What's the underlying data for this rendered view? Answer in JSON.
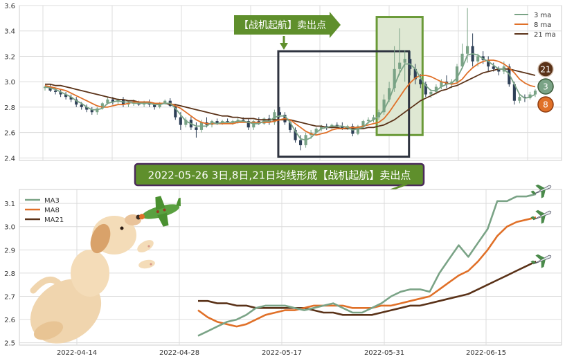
{
  "colors": {
    "ma3": "#7aa386",
    "ma8": "#e07028",
    "ma21": "#5a3218",
    "candle_up": "#7aa386",
    "candle_down": "#2e4057",
    "grid": "#dcdcdc",
    "banner_bg": "#5f8f2c",
    "banner_border": "#4a2a5a",
    "highlight_box": "#2f3440",
    "green_box_fill": "#dfe8d3",
    "green_box_stroke": "#6a9a38"
  },
  "top_chart": {
    "legend": [
      {
        "label": "3 ma",
        "series": "ma3"
      },
      {
        "label": "8 ma",
        "series": "ma8"
      },
      {
        "label": "21 ma",
        "series": "ma21"
      }
    ],
    "badges": [
      {
        "text": "21",
        "series": "ma21"
      },
      {
        "text": "3",
        "series": "ma3"
      },
      {
        "text": "8",
        "series": "ma8"
      }
    ],
    "arrow_label": "【战机起航】卖出点"
  },
  "middle_banner": {
    "text": "2022-05-26 3日,8日,21日均线形成【战机起航】卖出点"
  },
  "bottom_chart": {
    "legend": [
      {
        "label": "MA3",
        "series": "ma3"
      },
      {
        "label": "MA8",
        "series": "ma8"
      },
      {
        "label": "MA21",
        "series": "ma21"
      }
    ]
  },
  "icons": [
    "airplane-icon",
    "puppy-illustration",
    "toy-airplane-icon"
  ],
  "chart_data": [
    {
      "type": "candlestick",
      "title": "",
      "xlabel": "",
      "ylabel": "",
      "ylim": [
        2.38,
        3.6
      ],
      "y_ticks": [
        "2.4",
        "2.6",
        "2.8",
        "3.0",
        "3.2",
        "3.4",
        "3.6"
      ],
      "grid": true,
      "legend_position": "top-right",
      "ohlc": [
        [
          2.95,
          2.97,
          2.93,
          2.96
        ],
        [
          2.96,
          2.98,
          2.92,
          2.93
        ],
        [
          2.93,
          2.95,
          2.9,
          2.92
        ],
        [
          2.92,
          2.94,
          2.88,
          2.9
        ],
        [
          2.9,
          2.92,
          2.86,
          2.88
        ],
        [
          2.88,
          2.9,
          2.84,
          2.86
        ],
        [
          2.86,
          2.88,
          2.8,
          2.82
        ],
        [
          2.82,
          2.84,
          2.78,
          2.8
        ],
        [
          2.8,
          2.82,
          2.76,
          2.78
        ],
        [
          2.78,
          2.8,
          2.74,
          2.76
        ],
        [
          2.76,
          2.8,
          2.74,
          2.79
        ],
        [
          2.79,
          2.84,
          2.78,
          2.83
        ],
        [
          2.83,
          2.88,
          2.82,
          2.86
        ],
        [
          2.86,
          2.88,
          2.82,
          2.84
        ],
        [
          2.84,
          2.87,
          2.82,
          2.86
        ],
        [
          2.86,
          2.88,
          2.8,
          2.82
        ],
        [
          2.82,
          2.84,
          2.8,
          2.83
        ],
        [
          2.83,
          2.86,
          2.81,
          2.84
        ],
        [
          2.84,
          2.85,
          2.81,
          2.82
        ],
        [
          2.82,
          2.85,
          2.8,
          2.84
        ],
        [
          2.84,
          2.86,
          2.8,
          2.82
        ],
        [
          2.82,
          2.83,
          2.78,
          2.8
        ],
        [
          2.8,
          2.84,
          2.79,
          2.83
        ],
        [
          2.83,
          2.86,
          2.82,
          2.85
        ],
        [
          2.85,
          2.87,
          2.8,
          2.81
        ],
        [
          2.81,
          2.82,
          2.7,
          2.72
        ],
        [
          2.72,
          2.76,
          2.62,
          2.66
        ],
        [
          2.66,
          2.72,
          2.64,
          2.7
        ],
        [
          2.7,
          2.73,
          2.62,
          2.64
        ],
        [
          2.64,
          2.68,
          2.56,
          2.62
        ],
        [
          2.62,
          2.7,
          2.6,
          2.68
        ],
        [
          2.68,
          2.72,
          2.64,
          2.66
        ],
        [
          2.66,
          2.7,
          2.64,
          2.69
        ],
        [
          2.69,
          2.71,
          2.66,
          2.67
        ],
        [
          2.67,
          2.7,
          2.66,
          2.69
        ],
        [
          2.69,
          2.71,
          2.67,
          2.68
        ],
        [
          2.68,
          2.7,
          2.66,
          2.69
        ],
        [
          2.69,
          2.72,
          2.67,
          2.7
        ],
        [
          2.7,
          2.72,
          2.68,
          2.69
        ],
        [
          2.69,
          2.71,
          2.62,
          2.64
        ],
        [
          2.64,
          2.7,
          2.62,
          2.69
        ],
        [
          2.69,
          2.72,
          2.66,
          2.67
        ],
        [
          2.67,
          2.72,
          2.66,
          2.71
        ],
        [
          2.71,
          2.74,
          2.66,
          2.68
        ],
        [
          2.68,
          2.78,
          2.66,
          2.76
        ],
        [
          2.76,
          2.8,
          2.72,
          2.74
        ],
        [
          2.74,
          2.76,
          2.66,
          2.68
        ],
        [
          2.68,
          2.7,
          2.6,
          2.62
        ],
        [
          2.62,
          2.64,
          2.52,
          2.54
        ],
        [
          2.54,
          2.58,
          2.46,
          2.5
        ],
        [
          2.5,
          2.6,
          2.48,
          2.58
        ],
        [
          2.58,
          2.62,
          2.55,
          2.6
        ],
        [
          2.6,
          2.64,
          2.58,
          2.63
        ],
        [
          2.63,
          2.66,
          2.61,
          2.65
        ],
        [
          2.65,
          2.67,
          2.62,
          2.64
        ],
        [
          2.64,
          2.67,
          2.63,
          2.66
        ],
        [
          2.66,
          2.68,
          2.64,
          2.65
        ],
        [
          2.65,
          2.68,
          2.62,
          2.63
        ],
        [
          2.63,
          2.66,
          2.62,
          2.65
        ],
        [
          2.65,
          2.67,
          2.57,
          2.59
        ],
        [
          2.59,
          2.66,
          2.58,
          2.65
        ],
        [
          2.65,
          2.7,
          2.64,
          2.69
        ],
        [
          2.69,
          2.72,
          2.67,
          2.7
        ],
        [
          2.7,
          2.74,
          2.68,
          2.72
        ],
        [
          2.72,
          2.78,
          2.7,
          2.76
        ],
        [
          2.76,
          2.9,
          2.74,
          2.86
        ],
        [
          2.86,
          3.0,
          2.84,
          2.95
        ],
        [
          2.95,
          3.28,
          2.92,
          3.1
        ],
        [
          3.1,
          3.42,
          3.05,
          3.15
        ],
        [
          3.15,
          3.25,
          3.0,
          3.18
        ],
        [
          3.18,
          3.24,
          3.05,
          3.1
        ],
        [
          3.1,
          3.14,
          2.98,
          3.02
        ],
        [
          3.02,
          3.06,
          2.95,
          2.98
        ],
        [
          2.98,
          3.0,
          2.88,
          2.9
        ],
        [
          2.9,
          2.94,
          2.87,
          2.92
        ],
        [
          2.92,
          2.98,
          2.9,
          2.96
        ],
        [
          2.96,
          3.02,
          2.94,
          3.0
        ],
        [
          3.0,
          3.05,
          2.95,
          2.98
        ],
        [
          2.98,
          3.02,
          2.95,
          3.0
        ],
        [
          3.0,
          3.14,
          2.98,
          3.12
        ],
        [
          3.12,
          3.3,
          3.1,
          3.22
        ],
        [
          3.22,
          3.58,
          3.15,
          3.28
        ],
        [
          3.28,
          3.38,
          3.12,
          3.16
        ],
        [
          3.16,
          3.22,
          3.12,
          3.2
        ],
        [
          3.2,
          3.24,
          3.14,
          3.17
        ],
        [
          3.17,
          3.2,
          3.08,
          3.12
        ],
        [
          3.12,
          3.15,
          3.08,
          3.1
        ],
        [
          3.1,
          3.12,
          3.05,
          3.08
        ],
        [
          3.08,
          3.16,
          3.06,
          3.12
        ],
        [
          3.12,
          3.14,
          2.96,
          2.98
        ],
        [
          2.98,
          3.0,
          2.82,
          2.85
        ],
        [
          2.85,
          2.9,
          2.83,
          2.88
        ],
        [
          2.88,
          2.9,
          2.84,
          2.87
        ],
        [
          2.87,
          2.92,
          2.86,
          2.9
        ],
        [
          2.9,
          2.94,
          2.88,
          2.93
        ]
      ],
      "series": [
        {
          "name": "3 ma",
          "key": "ma3",
          "values": [
            2.96,
            2.95,
            2.94,
            2.92,
            2.9,
            2.88,
            2.85,
            2.83,
            2.8,
            2.78,
            2.78,
            2.79,
            2.83,
            2.84,
            2.85,
            2.84,
            2.84,
            2.83,
            2.83,
            2.83,
            2.83,
            2.82,
            2.82,
            2.83,
            2.83,
            2.79,
            2.74,
            2.69,
            2.67,
            2.65,
            2.65,
            2.65,
            2.68,
            2.67,
            2.68,
            2.68,
            2.68,
            2.69,
            2.69,
            2.68,
            2.67,
            2.67,
            2.69,
            2.69,
            2.72,
            2.73,
            2.73,
            2.68,
            2.61,
            2.55,
            2.54,
            2.56,
            2.6,
            2.63,
            2.64,
            2.65,
            2.65,
            2.65,
            2.64,
            2.62,
            2.63,
            2.64,
            2.68,
            2.7,
            2.73,
            2.78,
            2.86,
            2.97,
            3.07,
            3.14,
            3.14,
            3.1,
            3.03,
            2.97,
            2.93,
            2.93,
            2.96,
            2.98,
            2.99,
            3.03,
            3.11,
            3.21,
            3.22,
            3.21,
            3.18,
            3.16,
            3.13,
            3.1,
            3.1,
            3.06,
            2.98,
            2.9,
            2.87,
            2.88,
            2.9
          ]
        },
        {
          "name": "8 ma",
          "key": "ma8",
          "values": [
            2.97,
            2.96,
            2.95,
            2.94,
            2.93,
            2.91,
            2.89,
            2.87,
            2.85,
            2.83,
            2.81,
            2.8,
            2.8,
            2.81,
            2.82,
            2.82,
            2.83,
            2.84,
            2.84,
            2.84,
            2.84,
            2.83,
            2.83,
            2.83,
            2.83,
            2.81,
            2.79,
            2.76,
            2.73,
            2.7,
            2.68,
            2.67,
            2.67,
            2.67,
            2.67,
            2.67,
            2.67,
            2.68,
            2.68,
            2.68,
            2.68,
            2.68,
            2.68,
            2.68,
            2.69,
            2.7,
            2.71,
            2.7,
            2.67,
            2.64,
            2.61,
            2.59,
            2.58,
            2.59,
            2.6,
            2.62,
            2.63,
            2.63,
            2.64,
            2.64,
            2.64,
            2.65,
            2.66,
            2.67,
            2.68,
            2.71,
            2.76,
            2.82,
            2.88,
            2.94,
            2.99,
            3.03,
            3.05,
            3.05,
            3.04,
            3.02,
            3.0,
            2.99,
            2.98,
            2.99,
            3.02,
            3.07,
            3.11,
            3.14,
            3.16,
            3.17,
            3.17,
            3.16,
            3.14,
            3.11,
            3.07,
            3.02,
            2.99,
            2.97,
            2.96
          ]
        },
        {
          "name": "21 ma",
          "key": "ma21",
          "values": [
            2.98,
            2.98,
            2.97,
            2.97,
            2.96,
            2.95,
            2.94,
            2.93,
            2.92,
            2.91,
            2.9,
            2.89,
            2.88,
            2.87,
            2.86,
            2.86,
            2.85,
            2.85,
            2.84,
            2.84,
            2.84,
            2.83,
            2.83,
            2.83,
            2.82,
            2.82,
            2.81,
            2.8,
            2.79,
            2.78,
            2.77,
            2.76,
            2.75,
            2.74,
            2.73,
            2.73,
            2.72,
            2.72,
            2.71,
            2.71,
            2.71,
            2.7,
            2.7,
            2.7,
            2.7,
            2.7,
            2.7,
            2.7,
            2.69,
            2.68,
            2.67,
            2.66,
            2.65,
            2.65,
            2.64,
            2.64,
            2.64,
            2.63,
            2.63,
            2.63,
            2.63,
            2.63,
            2.64,
            2.64,
            2.65,
            2.66,
            2.68,
            2.7,
            2.73,
            2.76,
            2.79,
            2.82,
            2.85,
            2.87,
            2.89,
            2.91,
            2.93,
            2.94,
            2.96,
            2.97,
            2.99,
            3.01,
            3.03,
            3.05,
            3.07,
            3.08,
            3.09,
            3.1,
            3.1,
            3.1,
            3.09,
            3.08,
            3.07,
            3.06,
            3.05
          ]
        }
      ]
    },
    {
      "type": "line",
      "title": "",
      "xlabel": "",
      "ylabel": "",
      "ylim": [
        2.49,
        3.16
      ],
      "y_ticks": [
        "2.5",
        "2.6",
        "2.7",
        "2.8",
        "2.9",
        "3.0",
        "3.1"
      ],
      "x_ticks": [
        "2022-04-14",
        "2022-04-28",
        "2022-05-17",
        "2022-05-31",
        "2022-06-15"
      ],
      "grid": true,
      "legend_position": "top-left",
      "x": [
        0,
        1,
        2,
        3,
        4,
        5,
        6,
        7,
        8,
        9,
        10,
        11,
        12,
        13,
        14,
        15,
        16,
        17,
        18,
        19,
        20,
        21,
        22,
        23,
        24,
        25,
        26,
        27,
        28,
        29,
        30,
        31,
        32,
        33,
        34,
        35
      ],
      "series": [
        {
          "name": "MA3",
          "key": "ma3",
          "values": [
            2.53,
            2.55,
            2.57,
            2.59,
            2.6,
            2.62,
            2.65,
            2.66,
            2.66,
            2.66,
            2.65,
            2.64,
            2.65,
            2.66,
            2.67,
            2.65,
            2.63,
            2.63,
            2.65,
            2.67,
            2.7,
            2.72,
            2.73,
            2.73,
            2.72,
            2.8,
            2.86,
            2.92,
            2.87,
            2.93,
            2.99,
            3.11,
            3.11,
            3.13,
            3.13,
            3.14
          ]
        },
        {
          "name": "MA8",
          "key": "ma8",
          "values": [
            2.64,
            2.61,
            2.59,
            2.58,
            2.57,
            2.58,
            2.6,
            2.62,
            2.63,
            2.64,
            2.64,
            2.65,
            2.66,
            2.66,
            2.66,
            2.66,
            2.65,
            2.65,
            2.65,
            2.66,
            2.66,
            2.67,
            2.68,
            2.69,
            2.7,
            2.73,
            2.76,
            2.79,
            2.81,
            2.85,
            2.9,
            2.96,
            3.0,
            3.02,
            3.03,
            3.04
          ]
        },
        {
          "name": "MA21",
          "key": "ma21",
          "values": [
            2.68,
            2.68,
            2.67,
            2.67,
            2.66,
            2.66,
            2.65,
            2.65,
            2.65,
            2.65,
            2.65,
            2.65,
            2.64,
            2.63,
            2.63,
            2.62,
            2.62,
            2.62,
            2.62,
            2.63,
            2.64,
            2.65,
            2.66,
            2.66,
            2.67,
            2.68,
            2.69,
            2.7,
            2.71,
            2.73,
            2.75,
            2.77,
            2.79,
            2.81,
            2.83,
            2.85
          ]
        }
      ]
    }
  ]
}
